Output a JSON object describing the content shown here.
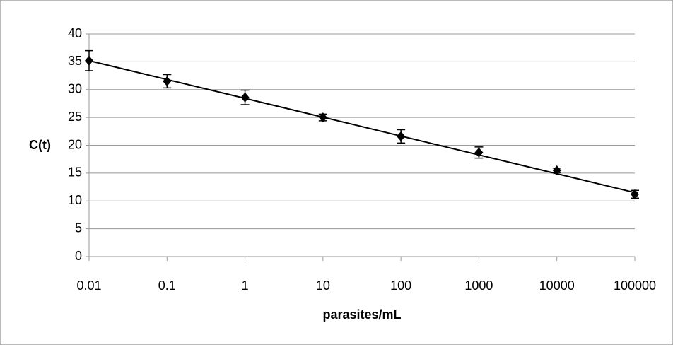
{
  "chart_data": {
    "type": "scatter",
    "x_label": "parasites/mL",
    "y_label": "C(t)",
    "xscale": "log",
    "xlim": [
      0.01,
      100000
    ],
    "xticks": [
      0.01,
      0.1,
      1,
      10,
      100,
      1000,
      10000,
      100000
    ],
    "ylim": [
      0,
      40
    ],
    "yticks": [
      0,
      5,
      10,
      15,
      20,
      25,
      30,
      35,
      40
    ],
    "grid": true,
    "color": "#000000",
    "x": [
      0.01,
      0.1,
      1,
      10,
      100,
      1000,
      10000,
      100000
    ],
    "values": [
      35.2,
      31.5,
      28.6,
      25.0,
      21.6,
      18.7,
      15.5,
      11.2
    ],
    "errors": [
      1.8,
      1.2,
      1.3,
      0.6,
      1.2,
      1.0,
      0.4,
      0.7
    ],
    "trendline": {
      "x": [
        0.01,
        100000
      ],
      "values": [
        35.2,
        11.5
      ]
    }
  }
}
